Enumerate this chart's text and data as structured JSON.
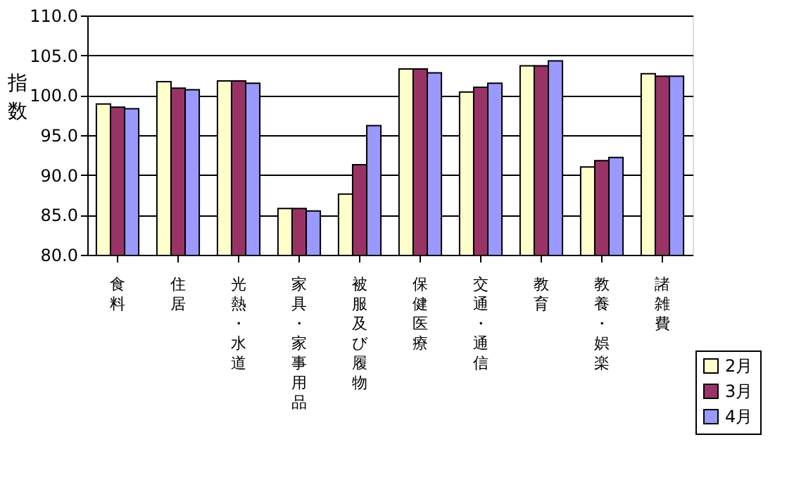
{
  "chart_data": {
    "type": "bar",
    "ylabel": "指数",
    "categories": [
      "食料",
      "住居",
      "光熱・水道",
      "家具・家事用品",
      "被服及び履物",
      "保健医療",
      "交通・通信",
      "教育",
      "教養・娯楽",
      "諸雑費"
    ],
    "series": [
      {
        "name": "2月",
        "color": "#ffffcc",
        "values": [
          98.9,
          101.7,
          101.8,
          85.8,
          87.6,
          103.3,
          100.4,
          103.7,
          91.0,
          102.7
        ]
      },
      {
        "name": "3月",
        "color": "#993366",
        "values": [
          98.5,
          100.9,
          101.8,
          85.8,
          91.3,
          103.3,
          101.0,
          103.7,
          91.8,
          102.4
        ]
      },
      {
        "name": "4月",
        "color": "#9999ff",
        "values": [
          98.3,
          100.7,
          101.5,
          85.5,
          96.2,
          102.8,
          101.5,
          104.3,
          92.2,
          102.4
        ]
      }
    ],
    "ylim": [
      80,
      110
    ],
    "yticks": [
      {
        "value": 80,
        "label": "80.0"
      },
      {
        "value": 85,
        "label": "85.0"
      },
      {
        "value": 90,
        "label": "90.0"
      },
      {
        "value": 95,
        "label": "95.0"
      },
      {
        "value": 100,
        "label": "100.0"
      },
      {
        "value": 105,
        "label": "105.0"
      },
      {
        "value": 110,
        "label": "110.0"
      }
    ],
    "grid": "y",
    "legend": "bottom right"
  }
}
